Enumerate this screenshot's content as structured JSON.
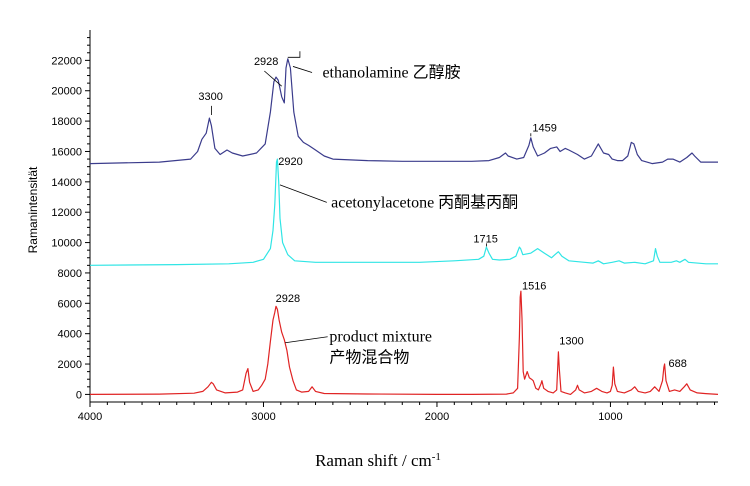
{
  "chart_data": {
    "type": "line",
    "xlabel": "Raman shift / cm",
    "xlabel_sup": "-1",
    "ylabel": "Ramanintensität",
    "xlim": [
      4000,
      380
    ],
    "x_reversed": true,
    "ylim": [
      -500,
      24000
    ],
    "x_ticks": [
      4000,
      3000,
      2000,
      1000
    ],
    "y_ticks": [
      0,
      2000,
      4000,
      6000,
      8000,
      10000,
      12000,
      14000,
      16000,
      18000,
      20000,
      22000
    ],
    "grid": false,
    "series": [
      {
        "color": "#3b3c8c",
        "points": [
          [
            4000,
            15200
          ],
          [
            3600,
            15300
          ],
          [
            3420,
            15500
          ],
          [
            3380,
            16000
          ],
          [
            3355,
            16800
          ],
          [
            3330,
            17200
          ],
          [
            3312,
            18200
          ],
          [
            3300,
            17700
          ],
          [
            3280,
            16200
          ],
          [
            3250,
            15800
          ],
          [
            3210,
            16100
          ],
          [
            3180,
            15900
          ],
          [
            3120,
            15700
          ],
          [
            3040,
            15900
          ],
          [
            2990,
            16500
          ],
          [
            2960,
            18600
          ],
          [
            2940,
            20600
          ],
          [
            2928,
            20900
          ],
          [
            2915,
            20700
          ],
          [
            2895,
            19600
          ],
          [
            2880,
            19200
          ],
          [
            2870,
            21500
          ],
          [
            2860,
            22100
          ],
          [
            2845,
            21500
          ],
          [
            2825,
            18600
          ],
          [
            2800,
            17000
          ],
          [
            2770,
            16600
          ],
          [
            2740,
            16400
          ],
          [
            2700,
            16100
          ],
          [
            2650,
            15700
          ],
          [
            2600,
            15500
          ],
          [
            2400,
            15400
          ],
          [
            2200,
            15350
          ],
          [
            2000,
            15350
          ],
          [
            1800,
            15350
          ],
          [
            1700,
            15400
          ],
          [
            1640,
            15600
          ],
          [
            1605,
            15900
          ],
          [
            1590,
            15700
          ],
          [
            1540,
            15500
          ],
          [
            1500,
            15600
          ],
          [
            1470,
            16400
          ],
          [
            1459,
            16900
          ],
          [
            1445,
            16300
          ],
          [
            1420,
            15700
          ],
          [
            1380,
            15900
          ],
          [
            1345,
            16200
          ],
          [
            1310,
            16300
          ],
          [
            1290,
            16000
          ],
          [
            1260,
            16200
          ],
          [
            1240,
            16100
          ],
          [
            1190,
            15800
          ],
          [
            1150,
            15500
          ],
          [
            1110,
            15700
          ],
          [
            1090,
            16100
          ],
          [
            1070,
            16500
          ],
          [
            1060,
            16300
          ],
          [
            1040,
            15900
          ],
          [
            1010,
            15800
          ],
          [
            990,
            15500
          ],
          [
            960,
            15400
          ],
          [
            930,
            15400
          ],
          [
            900,
            15700
          ],
          [
            880,
            16600
          ],
          [
            865,
            16500
          ],
          [
            845,
            15800
          ],
          [
            820,
            15400
          ],
          [
            760,
            15200
          ],
          [
            700,
            15300
          ],
          [
            670,
            15500
          ],
          [
            640,
            15500
          ],
          [
            600,
            15300
          ],
          [
            560,
            15600
          ],
          [
            530,
            15900
          ],
          [
            515,
            15700
          ],
          [
            480,
            15300
          ],
          [
            380,
            15300
          ]
        ]
      },
      {
        "color": "#30e5e5",
        "points": [
          [
            4000,
            8500
          ],
          [
            3500,
            8550
          ],
          [
            3200,
            8600
          ],
          [
            3060,
            8700
          ],
          [
            3000,
            8900
          ],
          [
            2960,
            9600
          ],
          [
            2945,
            10800
          ],
          [
            2935,
            12500
          ],
          [
            2925,
            15300
          ],
          [
            2920,
            15500
          ],
          [
            2912,
            14000
          ],
          [
            2905,
            11600
          ],
          [
            2890,
            10000
          ],
          [
            2860,
            9200
          ],
          [
            2820,
            8800
          ],
          [
            2700,
            8700
          ],
          [
            2400,
            8700
          ],
          [
            2100,
            8700
          ],
          [
            1900,
            8800
          ],
          [
            1760,
            8900
          ],
          [
            1730,
            9100
          ],
          [
            1715,
            9700
          ],
          [
            1700,
            9300
          ],
          [
            1680,
            8900
          ],
          [
            1640,
            8850
          ],
          [
            1580,
            8900
          ],
          [
            1545,
            9100
          ],
          [
            1525,
            9700
          ],
          [
            1518,
            9600
          ],
          [
            1505,
            9200
          ],
          [
            1460,
            9300
          ],
          [
            1420,
            9600
          ],
          [
            1380,
            9300
          ],
          [
            1340,
            9000
          ],
          [
            1320,
            9200
          ],
          [
            1300,
            9400
          ],
          [
            1280,
            9100
          ],
          [
            1240,
            8800
          ],
          [
            1150,
            8700
          ],
          [
            1100,
            8650
          ],
          [
            1070,
            8800
          ],
          [
            1040,
            8600
          ],
          [
            990,
            8700
          ],
          [
            950,
            8800
          ],
          [
            920,
            8650
          ],
          [
            860,
            8700
          ],
          [
            800,
            8600
          ],
          [
            752,
            8800
          ],
          [
            740,
            9600
          ],
          [
            730,
            9100
          ],
          [
            715,
            8700
          ],
          [
            650,
            8700
          ],
          [
            620,
            8800
          ],
          [
            600,
            8700
          ],
          [
            570,
            8900
          ],
          [
            550,
            8700
          ],
          [
            450,
            8600
          ],
          [
            380,
            8600
          ]
        ]
      },
      {
        "color": "#e02424",
        "points": [
          [
            4000,
            0
          ],
          [
            3600,
            20
          ],
          [
            3400,
            80
          ],
          [
            3350,
            200
          ],
          [
            3320,
            500
          ],
          [
            3300,
            800
          ],
          [
            3290,
            700
          ],
          [
            3270,
            300
          ],
          [
            3220,
            100
          ],
          [
            3150,
            150
          ],
          [
            3120,
            300
          ],
          [
            3100,
            1400
          ],
          [
            3090,
            1700
          ],
          [
            3080,
            800
          ],
          [
            3060,
            200
          ],
          [
            3030,
            300
          ],
          [
            3010,
            600
          ],
          [
            2990,
            1000
          ],
          [
            2975,
            2000
          ],
          [
            2960,
            3500
          ],
          [
            2945,
            4900
          ],
          [
            2935,
            5400
          ],
          [
            2928,
            5800
          ],
          [
            2920,
            5600
          ],
          [
            2910,
            4900
          ],
          [
            2895,
            4100
          ],
          [
            2880,
            3600
          ],
          [
            2865,
            2900
          ],
          [
            2850,
            1800
          ],
          [
            2830,
            900
          ],
          [
            2810,
            300
          ],
          [
            2780,
            150
          ],
          [
            2740,
            200
          ],
          [
            2720,
            500
          ],
          [
            2700,
            200
          ],
          [
            2650,
            60
          ],
          [
            2400,
            30
          ],
          [
            2000,
            0
          ],
          [
            1800,
            0
          ],
          [
            1600,
            20
          ],
          [
            1560,
            100
          ],
          [
            1535,
            400
          ],
          [
            1525,
            3800
          ],
          [
            1520,
            6400
          ],
          [
            1516,
            6800
          ],
          [
            1510,
            5000
          ],
          [
            1503,
            1500
          ],
          [
            1495,
            1000
          ],
          [
            1480,
            1500
          ],
          [
            1468,
            1100
          ],
          [
            1455,
            1000
          ],
          [
            1445,
            900
          ],
          [
            1430,
            400
          ],
          [
            1415,
            300
          ],
          [
            1400,
            700
          ],
          [
            1395,
            900
          ],
          [
            1385,
            400
          ],
          [
            1360,
            200
          ],
          [
            1330,
            100
          ],
          [
            1310,
            300
          ],
          [
            1300,
            2800
          ],
          [
            1295,
            1700
          ],
          [
            1285,
            200
          ],
          [
            1260,
            100
          ],
          [
            1230,
            0
          ],
          [
            1200,
            300
          ],
          [
            1190,
            600
          ],
          [
            1180,
            300
          ],
          [
            1150,
            100
          ],
          [
            1110,
            200
          ],
          [
            1080,
            400
          ],
          [
            1050,
            200
          ],
          [
            1020,
            100
          ],
          [
            1000,
            200
          ],
          [
            990,
            600
          ],
          [
            983,
            1800
          ],
          [
            975,
            700
          ],
          [
            960,
            200
          ],
          [
            920,
            100
          ],
          [
            880,
            300
          ],
          [
            860,
            500
          ],
          [
            840,
            200
          ],
          [
            800,
            100
          ],
          [
            770,
            200
          ],
          [
            745,
            500
          ],
          [
            720,
            200
          ],
          [
            700,
            900
          ],
          [
            692,
            1800
          ],
          [
            688,
            2000
          ],
          [
            680,
            900
          ],
          [
            660,
            200
          ],
          [
            630,
            300
          ],
          [
            600,
            200
          ],
          [
            575,
            500
          ],
          [
            560,
            700
          ],
          [
            540,
            300
          ],
          [
            500,
            100
          ],
          [
            450,
            50
          ],
          [
            380,
            0
          ]
        ]
      }
    ],
    "peak_labels": [
      {
        "text": "3300",
        "x": 3300,
        "y": 18200,
        "tx": 3375,
        "ty": 19400
      },
      {
        "text": "2928",
        "x": 2890,
        "y": 20500,
        "tx": 3055,
        "ty": 21700
      },
      {
        "text": "1459",
        "x": 1459,
        "y": 16900,
        "tx": 1450,
        "ty": 17300
      },
      {
        "text": "2920",
        "x": 2920,
        "y": 15500,
        "tx": 2915,
        "ty": 15100
      },
      {
        "text": "1715",
        "x": 1715,
        "y": 9700,
        "tx": 1790,
        "ty": 10000
      },
      {
        "text": "2928",
        "x": 2928,
        "y": 5800,
        "tx": 2930,
        "ty": 6100
      },
      {
        "text": "1516",
        "x": 1516,
        "y": 6800,
        "tx": 1510,
        "ty": 6900
      },
      {
        "text": "1300",
        "x": 1300,
        "y": 2800,
        "tx": 1295,
        "ty": 3300
      },
      {
        "text": "688",
        "x": 688,
        "y": 2000,
        "tx": 665,
        "ty": 1800
      }
    ],
    "annotations": [
      {
        "lines": [
          "ethanolamine 乙醇胺"
        ],
        "x": 2660,
        "y": 21200,
        "lead": [
          2720,
          21200,
          2830,
          21600
        ]
      },
      {
        "lines": [
          "acetonylacetone 丙酮基丙酮"
        ],
        "x": 2610,
        "y": 12650,
        "lead": [
          2635,
          12650,
          2905,
          13800
        ]
      },
      {
        "lines": [
          "product mixture",
          "产物混合物"
        ],
        "x": 2620,
        "y": 3800,
        "lead": [
          2630,
          3800,
          2875,
          3400
        ]
      }
    ],
    "ethanolamine_marker": [
      2860,
      22200,
      2790,
      22600
    ]
  }
}
